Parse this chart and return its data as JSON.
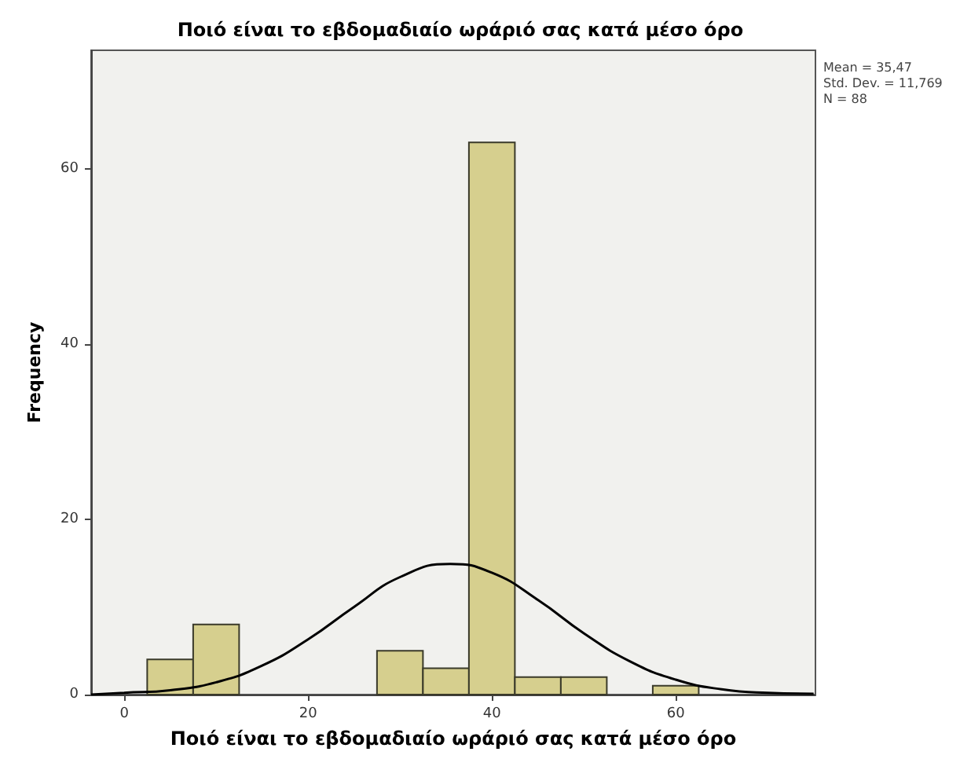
{
  "chart_data": {
    "type": "histogram",
    "title": "Ποιό είναι το εβδομαδιαίο ωράριό σας κατά μέσο όρο",
    "xlabel": "Ποιό είναι το εβδομαδιαίο ωράριό σας κατά μέσο όρο",
    "ylabel": "Frequency",
    "bins": [
      2.5,
      7.5,
      12.5,
      17.5,
      22.5,
      27.5,
      32.5,
      37.5,
      42.5,
      47.5,
      52.5,
      57.5,
      62.5
    ],
    "values": [
      4,
      8,
      0,
      0,
      0,
      5,
      3,
      63,
      2,
      2,
      0,
      1
    ],
    "color": "#d6cf8e",
    "series": [
      {
        "type": "line",
        "color": "#000000",
        "x": [
          -3.6,
          0,
          5,
          10,
          15,
          20,
          25,
          30,
          35.47,
          40,
          45,
          50,
          55,
          60,
          65,
          70,
          75
        ],
        "values": [
          0,
          0.2,
          0.5,
          1.4,
          3.3,
          6.3,
          10,
          13.4,
          14.9,
          13.9,
          10.8,
          7,
          3.8,
          1.7,
          0.6,
          0.2,
          0.1
        ]
      }
    ],
    "xlim": [
      -3.6,
      75.2
    ],
    "xticks": [
      0,
      20,
      40,
      60
    ],
    "ylim": [
      0,
      73.5
    ],
    "yticks": [
      0,
      20,
      40,
      60
    ],
    "grid": false,
    "marker": "none",
    "annotations": [
      "Mean = 35,47",
      "Std. Dev. = 11,769",
      "N = 88"
    ]
  }
}
